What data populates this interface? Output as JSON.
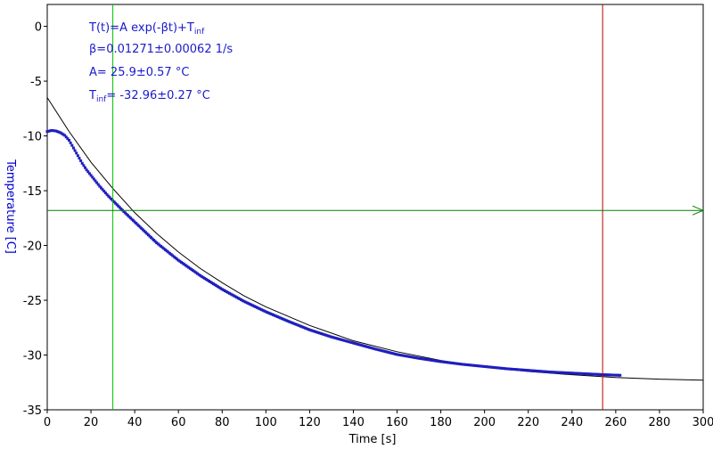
{
  "chart_data": {
    "type": "scatter",
    "xlabel": "Time [s]",
    "ylabel": "Temperature [C]",
    "xlim": [
      0,
      300
    ],
    "ylim": [
      -35,
      2
    ],
    "x_ticks": [
      0,
      20,
      40,
      60,
      80,
      100,
      120,
      140,
      160,
      180,
      200,
      220,
      240,
      260,
      280,
      300
    ],
    "y_ticks": [
      0,
      -5,
      -10,
      -15,
      -20,
      -25,
      -30,
      -35
    ],
    "grid": false,
    "colors": {
      "data": "#1f1fbf",
      "fit": "#000000",
      "cursor_v1": "#00c000",
      "cursor_v2": "#c00000",
      "cursor_h": "#008000",
      "text": "#1a1acc",
      "axis_label": "#0000cc"
    },
    "series": [
      {
        "kind": "measured",
        "x": [
          0,
          2,
          4,
          6,
          8,
          10,
          12,
          14,
          16,
          18,
          20,
          22,
          24,
          26,
          28,
          30,
          35,
          40,
          45,
          50,
          60,
          70,
          80,
          90,
          100,
          110,
          120,
          130,
          140,
          150,
          160,
          170,
          180,
          190,
          200,
          210,
          220,
          230,
          240,
          250,
          255,
          262
        ],
        "y": [
          -9.6,
          -9.5,
          -9.55,
          -9.7,
          -9.95,
          -10.4,
          -11.1,
          -11.8,
          -12.5,
          -13.1,
          -13.6,
          -14.1,
          -14.6,
          -15.05,
          -15.5,
          -15.9,
          -16.9,
          -17.85,
          -18.8,
          -19.75,
          -21.35,
          -22.75,
          -24.0,
          -25.1,
          -26.05,
          -26.9,
          -27.7,
          -28.35,
          -28.9,
          -29.45,
          -29.95,
          -30.3,
          -30.6,
          -30.85,
          -31.05,
          -31.25,
          -31.4,
          -31.55,
          -31.65,
          -31.75,
          -31.8,
          -31.85
        ]
      },
      {
        "kind": "fit",
        "x": [
          0,
          10,
          20,
          30,
          40,
          50,
          60,
          70,
          80,
          90,
          100,
          120,
          140,
          160,
          180,
          200,
          220,
          240,
          260,
          280,
          300
        ],
        "y": [
          -6.5,
          -9.6,
          -12.4,
          -14.8,
          -17.0,
          -18.9,
          -20.6,
          -22.1,
          -23.4,
          -24.6,
          -25.6,
          -27.3,
          -28.7,
          -29.7,
          -30.5,
          -31.1,
          -31.5,
          -31.8,
          -32.05,
          -32.2,
          -32.3
        ]
      }
    ],
    "cursors": {
      "vertical": [
        30,
        254
      ],
      "horizontal": -16.8
    },
    "annotations": {
      "line1": "T(t)=A exp(-βt)+T",
      "line1_sub": "inf",
      "line2": "β=0.01271±0.00062 1/s",
      "line3": "A= 25.9±0.57 °C",
      "line4_main": "T",
      "line4_sub": "inf",
      "line4_rest": "= -32.96±0.27 °C"
    }
  }
}
